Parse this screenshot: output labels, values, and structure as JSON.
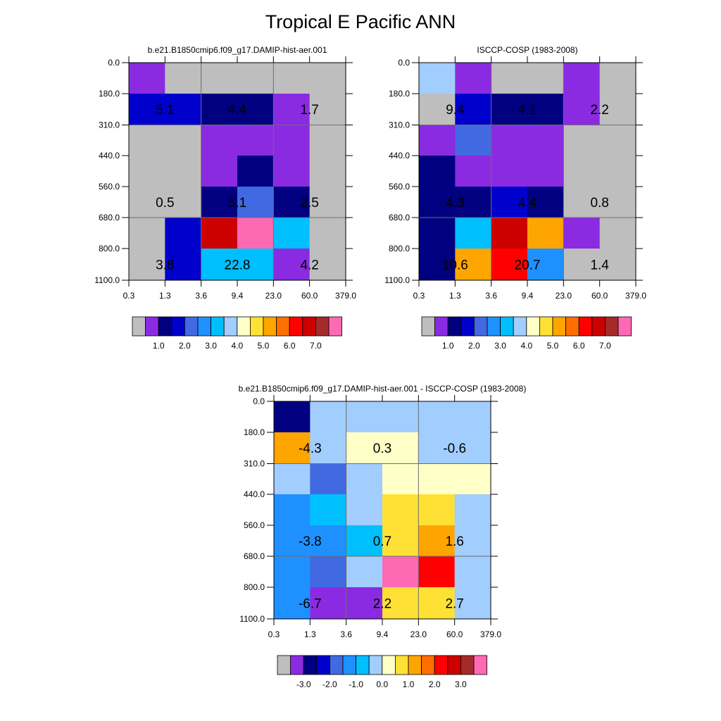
{
  "title": "Tropical E Pacific ANN",
  "chart_data": [
    {
      "type": "heatmap",
      "title": "b.e21.B1850cmip6.f09_g17.DAMIP-hist-aer.001",
      "x_tick_labels": [
        "0.3",
        "1.3",
        "3.6",
        "9.4",
        "23.0",
        "60.0",
        "379.0"
      ],
      "y_tick_labels": [
        "0.0",
        "180.0",
        "310.0",
        "440.0",
        "560.0",
        "680.0",
        "800.0",
        "1100.0"
      ],
      "colors": [
        [
          "#8a2be2",
          "#bebebe",
          "#bebebe",
          "#bebebe",
          "#bebebe",
          "#bebebe"
        ],
        [
          "#0000cd",
          "#0000cd",
          "#000080",
          "#000080",
          "#8a2be2",
          "#bebebe"
        ],
        [
          "#bebebe",
          "#bebebe",
          "#8a2be2",
          "#8a2be2",
          "#8a2be2",
          "#bebebe"
        ],
        [
          "#bebebe",
          "#bebebe",
          "#8a2be2",
          "#000080",
          "#8a2be2",
          "#bebebe"
        ],
        [
          "#bebebe",
          "#bebebe",
          "#000080",
          "#4169e1",
          "#000080",
          "#bebebe"
        ],
        [
          "#bebebe",
          "#0000cd",
          "#cd0000",
          "#ff69b4",
          "#00bfff",
          "#bebebe"
        ],
        [
          "#bebebe",
          "#0000cd",
          "#00bfff",
          "#00bfff",
          "#8a2be2",
          "#bebebe"
        ]
      ],
      "labels": [
        {
          "text": "5.1",
          "row": 1,
          "col": 0
        },
        {
          "text": "4.4",
          "row": 1,
          "col": 2
        },
        {
          "text": "1.7",
          "row": 1,
          "col": 4
        },
        {
          "text": "0.5",
          "row": 4,
          "col": 0
        },
        {
          "text": "5.1",
          "row": 4,
          "col": 2
        },
        {
          "text": "2.5",
          "row": 4,
          "col": 4
        },
        {
          "text": "3.8",
          "row": 6,
          "col": 0
        },
        {
          "text": "22.8",
          "row": 6,
          "col": 2
        },
        {
          "text": "4.2",
          "row": 6,
          "col": 4
        }
      ],
      "colorbar": {
        "colors": [
          "#bebebe",
          "#8a2be2",
          "#000080",
          "#0000cd",
          "#4169e1",
          "#1e90ff",
          "#00bfff",
          "#a2cdff",
          "#ffffc8",
          "#ffe135",
          "#ffa500",
          "#ff6e00",
          "#ff0000",
          "#cd0000",
          "#a52a2a",
          "#ff69b4"
        ],
        "labels": [
          "1.0",
          "2.0",
          "3.0",
          "4.0",
          "5.0",
          "6.0",
          "7.0"
        ]
      }
    },
    {
      "type": "heatmap",
      "title": "ISCCP-COSP (1983-2008)",
      "x_tick_labels": [
        "0.3",
        "1.3",
        "3.6",
        "9.4",
        "23.0",
        "60.0",
        "379.0"
      ],
      "y_tick_labels": [
        "0.0",
        "180.0",
        "310.0",
        "440.0",
        "560.0",
        "680.0",
        "800.0",
        "1100.0"
      ],
      "colors": [
        [
          "#a2cdff",
          "#8a2be2",
          "#bebebe",
          "#bebebe",
          "#8a2be2",
          "#bebebe"
        ],
        [
          "#bebebe",
          "#0000cd",
          "#000080",
          "#000080",
          "#8a2be2",
          "#bebebe"
        ],
        [
          "#8a2be2",
          "#4169e1",
          "#8a2be2",
          "#8a2be2",
          "#bebebe",
          "#bebebe"
        ],
        [
          "#000080",
          "#8a2be2",
          "#8a2be2",
          "#8a2be2",
          "#bebebe",
          "#bebebe"
        ],
        [
          "#000080",
          "#000080",
          "#0000cd",
          "#000080",
          "#bebebe",
          "#bebebe"
        ],
        [
          "#000080",
          "#00bfff",
          "#cd0000",
          "#ffa500",
          "#8a2be2",
          "#bebebe"
        ],
        [
          "#000080",
          "#ffa500",
          "#ff0000",
          "#1e90ff",
          "#bebebe",
          "#bebebe"
        ]
      ],
      "labels": [
        {
          "text": "9.4",
          "row": 1,
          "col": 0
        },
        {
          "text": "4.1",
          "row": 1,
          "col": 2
        },
        {
          "text": "2.2",
          "row": 1,
          "col": 4
        },
        {
          "text": "4.3",
          "row": 4,
          "col": 0
        },
        {
          "text": "4.4",
          "row": 4,
          "col": 2
        },
        {
          "text": "0.8",
          "row": 4,
          "col": 4
        },
        {
          "text": "10.6",
          "row": 6,
          "col": 0
        },
        {
          "text": "20.7",
          "row": 6,
          "col": 2
        },
        {
          "text": "1.4",
          "row": 6,
          "col": 4
        }
      ],
      "colorbar": {
        "colors": [
          "#bebebe",
          "#8a2be2",
          "#000080",
          "#0000cd",
          "#4169e1",
          "#1e90ff",
          "#00bfff",
          "#a2cdff",
          "#ffffc8",
          "#ffe135",
          "#ffa500",
          "#ff6e00",
          "#ff0000",
          "#cd0000",
          "#a52a2a",
          "#ff69b4"
        ],
        "labels": [
          "1.0",
          "2.0",
          "3.0",
          "4.0",
          "5.0",
          "6.0",
          "7.0"
        ]
      }
    },
    {
      "type": "heatmap",
      "title": "b.e21.B1850cmip6.f09_g17.DAMIP-hist-aer.001 - ISCCP-COSP (1983-2008)",
      "x_tick_labels": [
        "0.3",
        "1.3",
        "3.6",
        "9.4",
        "23.0",
        "60.0",
        "379.0"
      ],
      "y_tick_labels": [
        "0.0",
        "180.0",
        "310.0",
        "440.0",
        "560.0",
        "680.0",
        "800.0",
        "1100.0"
      ],
      "colors": [
        [
          "#000080",
          "#a2cdff",
          "#a2cdff",
          "#a2cdff",
          "#a2cdff",
          "#a2cdff"
        ],
        [
          "#ffa500",
          "#a2cdff",
          "#ffffc8",
          "#ffffc8",
          "#a2cdff",
          "#a2cdff"
        ],
        [
          "#a2cdff",
          "#4169e1",
          "#a2cdff",
          "#ffffc8",
          "#ffffc8",
          "#ffffc8"
        ],
        [
          "#1e90ff",
          "#00bfff",
          "#a2cdff",
          "#ffe135",
          "#ffe135",
          "#a2cdff"
        ],
        [
          "#1e90ff",
          "#1e90ff",
          "#00bfff",
          "#ffe135",
          "#ffa500",
          "#a2cdff"
        ],
        [
          "#1e90ff",
          "#4169e1",
          "#a2cdff",
          "#ff69b4",
          "#ff0000",
          "#a2cdff"
        ],
        [
          "#1e90ff",
          "#8a2be2",
          "#8a2be2",
          "#ffe135",
          "#ffe135",
          "#a2cdff"
        ]
      ],
      "labels": [
        {
          "text": "-4.3",
          "row": 1,
          "col": 0
        },
        {
          "text": "0.3",
          "row": 1,
          "col": 2
        },
        {
          "text": "-0.6",
          "row": 1,
          "col": 4
        },
        {
          "text": "-3.8",
          "row": 4,
          "col": 0
        },
        {
          "text": "0.7",
          "row": 4,
          "col": 2
        },
        {
          "text": "1.6",
          "row": 4,
          "col": 4
        },
        {
          "text": "-6.7",
          "row": 6,
          "col": 0
        },
        {
          "text": "2.2",
          "row": 6,
          "col": 2
        },
        {
          "text": "2.7",
          "row": 6,
          "col": 4
        }
      ],
      "colorbar": {
        "colors": [
          "#bebebe",
          "#8a2be2",
          "#000080",
          "#0000cd",
          "#4169e1",
          "#1e90ff",
          "#00bfff",
          "#a2cdff",
          "#ffffc8",
          "#ffe135",
          "#ffa500",
          "#ff6e00",
          "#ff0000",
          "#cd0000",
          "#a52a2a",
          "#ff69b4"
        ],
        "labels": [
          "-3.0",
          "-2.0",
          "-1.0",
          "0.0",
          "1.0",
          "2.0",
          "3.0"
        ]
      }
    }
  ]
}
